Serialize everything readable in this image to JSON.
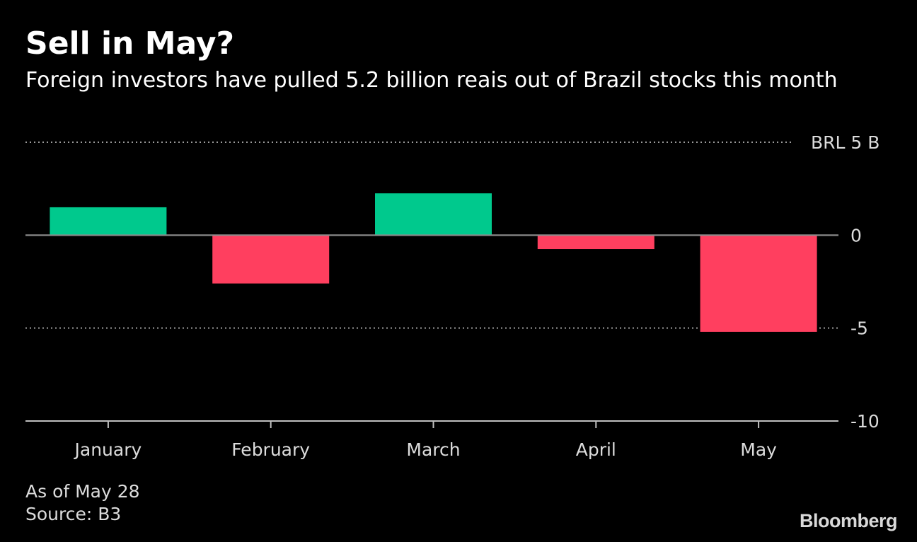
{
  "title": "Sell in May?",
  "subtitle": "Foreign investors have pulled 5.2 billion reais out of Brazil stocks this month",
  "footnote": {
    "as_of": "As of May 28",
    "source": "Source: B3"
  },
  "brand": "Bloomberg",
  "colors": {
    "positive": "#00c98d",
    "negative": "#ff3f5f",
    "gridline": "#9a9a9a",
    "axis": "#bfbfbf",
    "text": "#dcdcdc"
  },
  "chart_data": {
    "type": "bar",
    "categories": [
      "January",
      "February",
      "March",
      "April",
      "May"
    ],
    "values": [
      1.5,
      -2.6,
      2.25,
      -0.75,
      -5.2
    ],
    "unit_label": "BRL 5 B",
    "ylim": [
      -10,
      5
    ],
    "yticks": [
      5,
      0,
      -5,
      -10
    ],
    "ytick_labels": [
      "BRL 5 B",
      "0",
      "-5",
      "-10"
    ],
    "grid": true,
    "grid_style": "dotted",
    "xlabel": "",
    "ylabel": ""
  }
}
